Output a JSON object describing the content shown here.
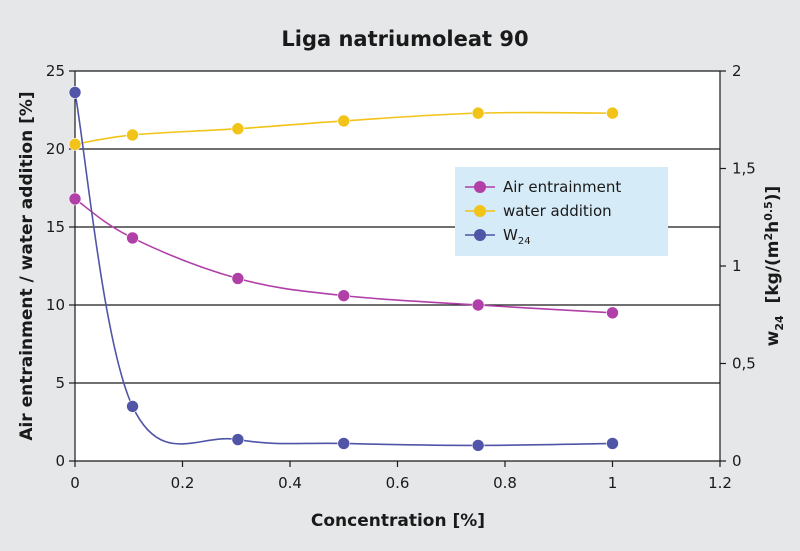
{
  "chart_data": {
    "type": "line",
    "title": "Liga natriumoleat 90",
    "xlabel": "Concentration [%]",
    "ylabel": "Air entrainment / water addition [%]",
    "y2label": "w24 [kg/(m²h0.5)]",
    "x_ticks": [
      "0",
      "0.2",
      "0.4",
      "0.6",
      "0.8",
      "1",
      "1.2"
    ],
    "y_ticks": [
      "0",
      "5",
      "10",
      "15",
      "20",
      "25"
    ],
    "y2_ticks": [
      "0",
      "0,5",
      "1",
      "1,5",
      "2"
    ],
    "xlim": [
      0,
      1.2
    ],
    "ylim": [
      0,
      25
    ],
    "y2lim": [
      0,
      2
    ],
    "legend_position": "right-center",
    "grid": "horizontal",
    "series": [
      {
        "name": "Air entrainment",
        "axis": "left",
        "color": "#b13fa8",
        "x": [
          0,
          0.107,
          0.303,
          0.5,
          0.75,
          1.0
        ],
        "y": [
          16.8,
          14.3,
          11.7,
          10.6,
          10.0,
          9.5
        ]
      },
      {
        "name": "water addition",
        "axis": "left",
        "color": "#f2c318",
        "x": [
          0,
          0.107,
          0.303,
          0.5,
          0.75,
          1.0
        ],
        "y": [
          20.3,
          20.9,
          21.3,
          21.8,
          22.3,
          22.3
        ]
      },
      {
        "name": "W",
        "name_sub": "24",
        "axis": "right",
        "color": "#5055a7",
        "x": [
          0,
          0.107,
          0.303,
          0.5,
          0.75,
          1.0
        ],
        "y": [
          1.89,
          0.28,
          0.11,
          0.09,
          0.08,
          0.09
        ]
      }
    ]
  }
}
